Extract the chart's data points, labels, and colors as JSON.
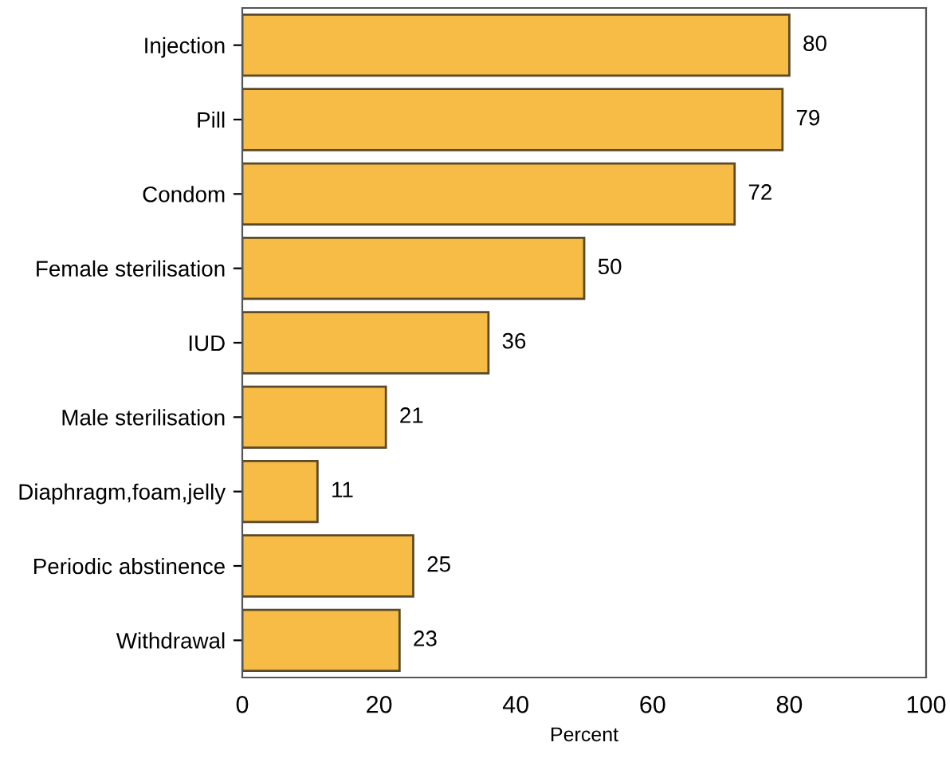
{
  "chart_data": {
    "type": "bar",
    "orientation": "horizontal",
    "xlabel": "Percent",
    "categories": [
      "Injection",
      "Pill",
      "Condom",
      "Female sterilisation",
      "IUD",
      "Male sterilisation",
      "Diaphragm,foam,jelly",
      "Periodic abstinence",
      "Withdrawal"
    ],
    "values": [
      80,
      79,
      72,
      50,
      36,
      21,
      11,
      25,
      23
    ],
    "color": "#f7bc45",
    "xlim": [
      0,
      100
    ],
    "xticks": [
      0,
      20,
      40,
      60,
      80,
      100
    ],
    "grid": false,
    "data_labels": true
  }
}
